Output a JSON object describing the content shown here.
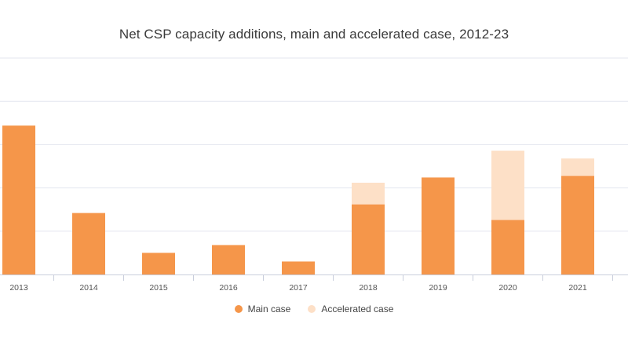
{
  "chart_data": {
    "type": "bar",
    "stacked": true,
    "title": "Net CSP capacity additions, main and accelerated case, 2012-23",
    "xlabel": "",
    "ylabel": "",
    "categories": [
      "2013",
      "2014",
      "2015",
      "2016",
      "2017",
      "2018",
      "2019",
      "2020",
      "2021"
    ],
    "ylim": [
      0,
      1250
    ],
    "gridlines": [
      250,
      500,
      750,
      1000,
      1250
    ],
    "grid": true,
    "legend_position": "bottom",
    "series": [
      {
        "name": "Main case",
        "color": "#f5964a",
        "values": [
          860,
          355,
          125,
          170,
          75,
          405,
          560,
          315,
          570
        ]
      },
      {
        "name": "Accelerated case",
        "color": "#fde0c7",
        "values": [
          0,
          0,
          0,
          0,
          0,
          125,
          0,
          400,
          100
        ]
      }
    ]
  }
}
